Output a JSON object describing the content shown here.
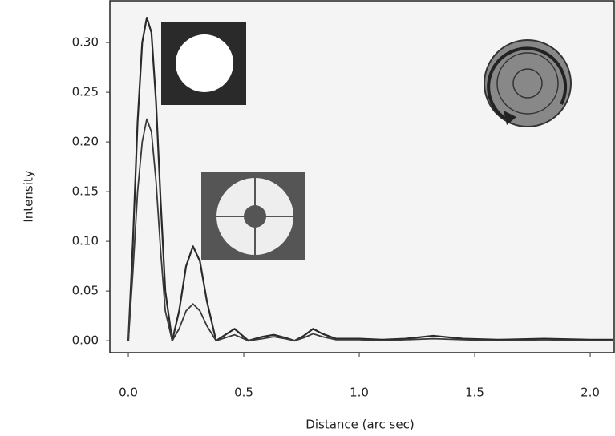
{
  "chart_data": {
    "type": "line",
    "x_label": "Distance (arc sec)",
    "y_label": "Intensity",
    "x": [
      0,
      0.02,
      0.04,
      0.06,
      0.08,
      0.1,
      0.12,
      0.14,
      0.16,
      0.19,
      0.22,
      0.25,
      0.28,
      0.31,
      0.34,
      0.38,
      0.42,
      0.46,
      0.52,
      0.58,
      0.63,
      0.68,
      0.72,
      0.76,
      0.8,
      0.84,
      0.9,
      1.0,
      1.1,
      1.2,
      1.32,
      1.45,
      1.6,
      1.8,
      2.0,
      2.1
    ],
    "series": [
      {
        "color": "#2a2a2a",
        "values": [
          0,
          0.1,
          0.22,
          0.3,
          0.325,
          0.31,
          0.24,
          0.14,
          0.05,
          0,
          0.03,
          0.075,
          0.095,
          0.08,
          0.04,
          0,
          0.006,
          0.012,
          0,
          0.004,
          0.006,
          0.003,
          0,
          0.005,
          0.012,
          0.007,
          0.002,
          0.002,
          0.001,
          0.002,
          0.005,
          0.002,
          0.001,
          0.002,
          0.001,
          0.001
        ]
      },
      {
        "color": "#3a3a3a",
        "values": [
          0,
          0.07,
          0.15,
          0.2,
          0.223,
          0.21,
          0.16,
          0.09,
          0.03,
          0,
          0.012,
          0.03,
          0.037,
          0.03,
          0.015,
          0,
          0.003,
          0.006,
          0,
          0.002,
          0.004,
          0.002,
          0,
          0.003,
          0.007,
          0.004,
          0.001,
          0.001,
          0,
          0.001,
          0.002,
          0.001,
          0,
          0.001,
          0,
          0
        ]
      }
    ],
    "xlim": [
      -0.08,
      2.104
    ],
    "ylim": [
      -0.012,
      0.342
    ],
    "xticks": [
      {
        "value": 0,
        "label": "0.0"
      },
      0.5,
      {
        "value": 1,
        "label": "1.0"
      },
      1.5,
      {
        "value": 2,
        "label": "2.0"
      }
    ],
    "yticks": [
      {
        "value": 0,
        "label": "0.00"
      },
      0.05,
      {
        "value": 0.1,
        "label": "0.10"
      },
      0.15,
      {
        "value": 0.2,
        "label": "0.20"
      },
      0.25,
      {
        "value": 0.3,
        "label": "0.30"
      }
    ]
  }
}
